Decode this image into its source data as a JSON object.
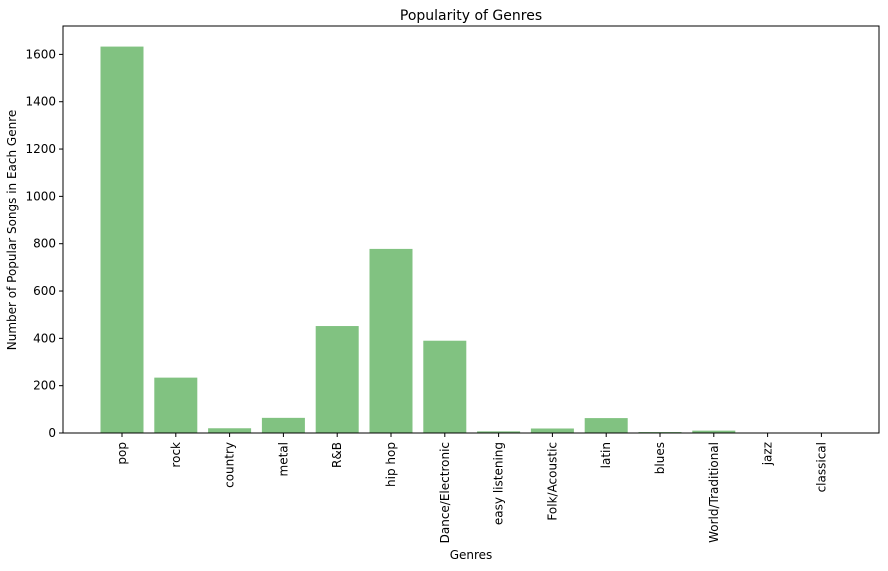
{
  "chart_data": {
    "type": "bar",
    "title": "Popularity of Genres",
    "xlabel": "Genres",
    "ylabel": "Number of Popular Songs in Each Genre",
    "categories": [
      "pop",
      "rock",
      "country",
      "metal",
      "R&B",
      "hip hop",
      "Dance/Electronic",
      "easy listening",
      "Folk/Acoustic",
      "latin",
      "blues",
      "World/Traditional",
      "jazz",
      "classical"
    ],
    "values": [
      1633,
      234,
      20,
      64,
      452,
      778,
      390,
      7,
      19,
      63,
      4,
      10,
      2,
      1
    ],
    "ylim": [
      0,
      1720
    ],
    "yticks": [
      0,
      200,
      400,
      600,
      800,
      1000,
      1200,
      1400,
      1600
    ],
    "bar_color": "#81c281",
    "grid": false,
    "legend": "none"
  }
}
